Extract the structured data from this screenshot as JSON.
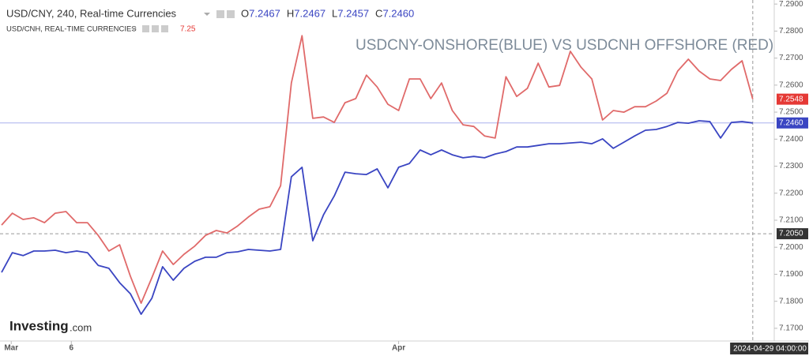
{
  "header": {
    "symbol": "USD/CNY, 240, Real-time Currencies",
    "ohlc": [
      {
        "key": "O",
        "value": "7.2467"
      },
      {
        "key": "H",
        "value": "7.2467"
      },
      {
        "key": "L",
        "value": "7.2457"
      },
      {
        "key": "C",
        "value": "7.2460"
      }
    ],
    "indicator": "USD/CNH, REAL-TIME CURRENCIES",
    "indicator_value": "7.25"
  },
  "logo": {
    "brand": "Investing",
    "suffix": ".com"
  },
  "chart_data": {
    "type": "line",
    "title": "USDCNY-ONSHORE(BLUE) VS USDCNH OFFSHORE (RED)",
    "x": [
      0,
      1,
      2,
      3,
      4,
      5,
      6,
      7,
      8,
      9,
      10,
      11,
      12,
      13,
      14,
      15,
      16,
      17,
      18,
      19,
      20,
      21,
      22,
      23,
      24,
      25,
      26,
      27,
      28,
      29,
      30,
      31,
      32,
      33,
      34,
      35,
      36,
      37,
      38,
      39,
      40,
      41,
      42,
      43,
      44,
      45,
      46,
      47,
      48,
      49,
      50,
      51,
      52,
      53,
      54,
      55,
      56,
      57,
      58,
      59,
      60,
      61,
      62,
      63,
      64,
      65,
      66,
      67,
      68,
      69,
      70
    ],
    "series": [
      {
        "name": "USD/CNY",
        "color": "#3a45c2",
        "values": [
          7.1907,
          7.198,
          7.1969,
          7.1986,
          7.1986,
          7.1989,
          7.198,
          7.1986,
          7.198,
          7.1933,
          7.1922,
          7.1869,
          7.1828,
          7.1752,
          7.1811,
          7.1928,
          7.1878,
          7.1922,
          7.1948,
          7.1963,
          7.1963,
          7.198,
          7.1983,
          7.1992,
          7.1989,
          7.1986,
          7.1992,
          7.2261,
          7.2296,
          7.2024,
          7.212,
          7.219,
          7.2278,
          7.2272,
          7.2269,
          7.229,
          7.222,
          7.2296,
          7.231,
          7.236,
          7.2342,
          7.236,
          7.2342,
          7.2331,
          7.2336,
          7.2331,
          7.2345,
          7.2354,
          7.2371,
          7.2371,
          7.2377,
          7.2383,
          7.2383,
          7.2386,
          7.2389,
          7.2383,
          7.2401,
          7.2366,
          7.2389,
          7.2412,
          7.2433,
          7.2436,
          7.2447,
          7.2462,
          7.2459,
          7.2468,
          7.2465,
          7.2404,
          7.2462,
          7.2465,
          7.246
        ]
      },
      {
        "name": "USD/CNH",
        "color": "#e06a6a",
        "values": [
          7.2082,
          7.2126,
          7.2103,
          7.2109,
          7.2091,
          7.2126,
          7.2132,
          7.2091,
          7.2091,
          7.2044,
          7.1986,
          7.2009,
          7.1893,
          7.1793,
          7.1887,
          7.1986,
          7.1936,
          7.1974,
          7.2004,
          7.2044,
          7.2062,
          7.2053,
          7.2079,
          7.2112,
          7.2141,
          7.215,
          7.2228,
          7.2608,
          7.2783,
          7.2477,
          7.2482,
          7.2462,
          7.2535,
          7.255,
          7.2637,
          7.2593,
          7.2529,
          7.2506,
          7.2623,
          7.2623,
          7.255,
          7.2608,
          7.2506,
          7.2453,
          7.2447,
          7.2412,
          7.2404,
          7.2631,
          7.2558,
          7.2588,
          7.2681,
          7.2593,
          7.2599,
          7.2725,
          7.2666,
          7.2623,
          7.2471,
          7.2506,
          7.25,
          7.252,
          7.252,
          7.2541,
          7.257,
          7.2652,
          7.2696,
          7.2652,
          7.2623,
          7.2617,
          7.2658,
          7.269,
          7.2548
        ]
      }
    ],
    "xlim": [
      0,
      72
    ],
    "xticks": [
      {
        "value": 0.9,
        "label": "Mar"
      },
      {
        "value": 6.5,
        "label": "6"
      },
      {
        "value": 37,
        "label": "Apr"
      }
    ],
    "ylim": [
      7.1653,
      7.2915
    ],
    "yticks": [
      {
        "value": 7.17,
        "label": "7.1700"
      },
      {
        "value": 7.18,
        "label": "7.1800"
      },
      {
        "value": 7.19,
        "label": "7.1900"
      },
      {
        "value": 7.2,
        "label": "7.2000"
      },
      {
        "value": 7.21,
        "label": "7.2100"
      },
      {
        "value": 7.22,
        "label": "7.2200"
      },
      {
        "value": 7.23,
        "label": "7.2300"
      },
      {
        "value": 7.24,
        "label": "7.2400"
      },
      {
        "value": 7.25,
        "label": "7.2500"
      },
      {
        "value": 7.26,
        "label": "7.2600"
      },
      {
        "value": 7.27,
        "label": "7.2700"
      },
      {
        "value": 7.28,
        "label": "7.2800"
      },
      {
        "value": 7.29,
        "label": "7.2900"
      }
    ],
    "price_labels": [
      {
        "value": 7.2548,
        "label": "7.2548",
        "color": "#e53935"
      },
      {
        "value": 7.246,
        "label": "7.2460",
        "color": "#3a45c2"
      }
    ],
    "crosshair": {
      "x": 70,
      "x_label": "2024-04-29 04:00:00",
      "y": 7.205,
      "y_label": "7.2050"
    }
  }
}
